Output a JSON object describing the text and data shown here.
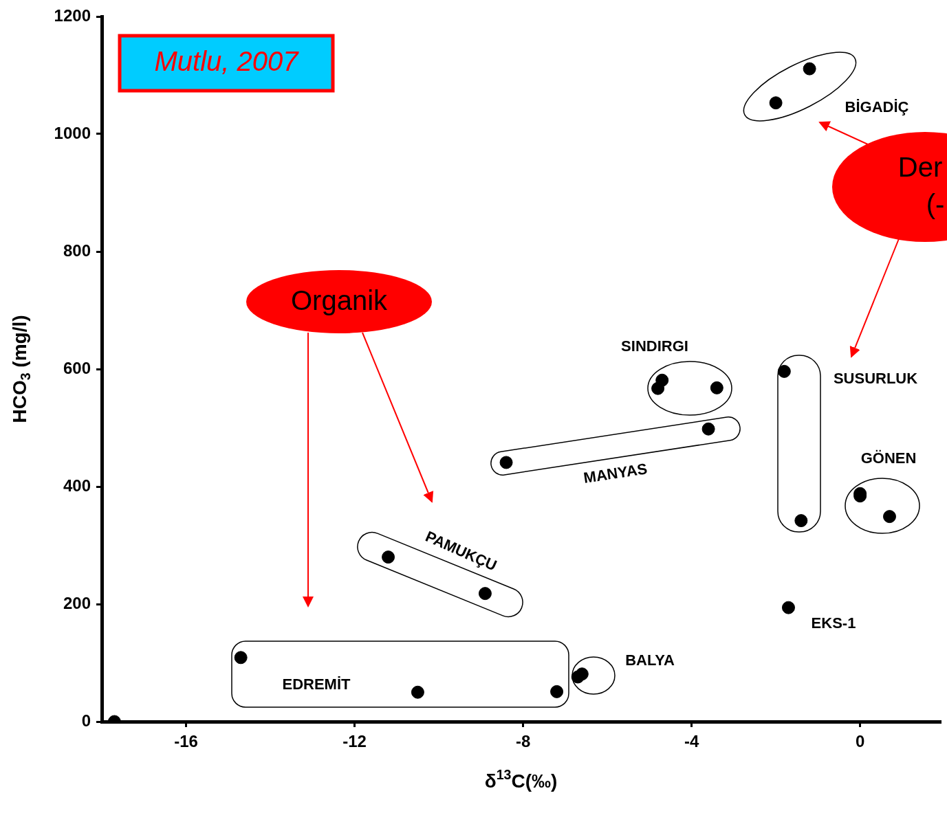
{
  "chart_data": {
    "type": "scatter",
    "xlabel": "δ$^{13}$C(‰)",
    "ylabel": "HCO$_{3}$ (mg/l)",
    "x": [
      -17.7,
      -14.7,
      -10.5,
      -7.2,
      -11.2,
      -8.9,
      -6.7,
      -6.6,
      -8.4,
      -3.6,
      -4.8,
      -4.7,
      -3.4,
      -1.8,
      -1.4,
      -1.7,
      0,
      0,
      0.7,
      -2.0,
      -1.2
    ],
    "values": [
      0,
      109,
      50,
      51,
      280,
      218,
      76,
      81,
      441,
      498,
      567,
      581,
      568,
      596,
      342,
      194,
      388,
      384,
      349,
      1053,
      1111
    ],
    "color": "#000000",
    "marker": "circle",
    "xlim": [
      -18,
      1.9
    ],
    "ylim": [
      0,
      1200
    ],
    "xticks": [
      -16,
      -12,
      -8,
      -4,
      0
    ],
    "yticks": [
      0,
      200,
      400,
      600,
      800,
      1000,
      1200
    ],
    "annotations": [
      "Mutlu, 2007",
      "Organik",
      "Der",
      "(-",
      "BİGADİÇ",
      "SINDIRGI",
      "SUSURLUK",
      "GÖNEN",
      "MANYAS",
      "PAMUKÇU",
      "EDREMİT",
      "BALYA",
      "EKS-1"
    ]
  }
}
